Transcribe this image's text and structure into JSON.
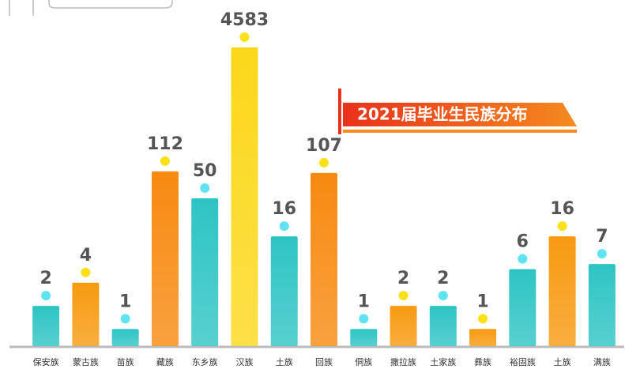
{
  "chart_data": {
    "type": "bar",
    "title": "2021届毕业生民族分布",
    "categories": [
      "保安族",
      "蒙古族",
      "苗族",
      "藏族",
      "东乡族",
      "汉族",
      "土族",
      "回族",
      "侗族",
      "撒拉族",
      "土家族",
      "彝族",
      "裕固族",
      "土族",
      "满族"
    ],
    "values": [
      2,
      4,
      1,
      112,
      50,
      4583,
      16,
      107,
      1,
      2,
      2,
      1,
      6,
      16,
      7
    ],
    "colors": [
      "#2ec4c4",
      "#f79a10",
      "#2ec4c4",
      "#f78a10",
      "#2ec4c4",
      "#fbd81a",
      "#2ec4c4",
      "#f78a10",
      "#2ec4c4",
      "#f79a10",
      "#2ec4c4",
      "#f79a10",
      "#2ec4c4",
      "#f79a10",
      "#2ec4c4"
    ],
    "log_scale": true,
    "ylim": [
      0.6,
      4800
    ]
  }
}
